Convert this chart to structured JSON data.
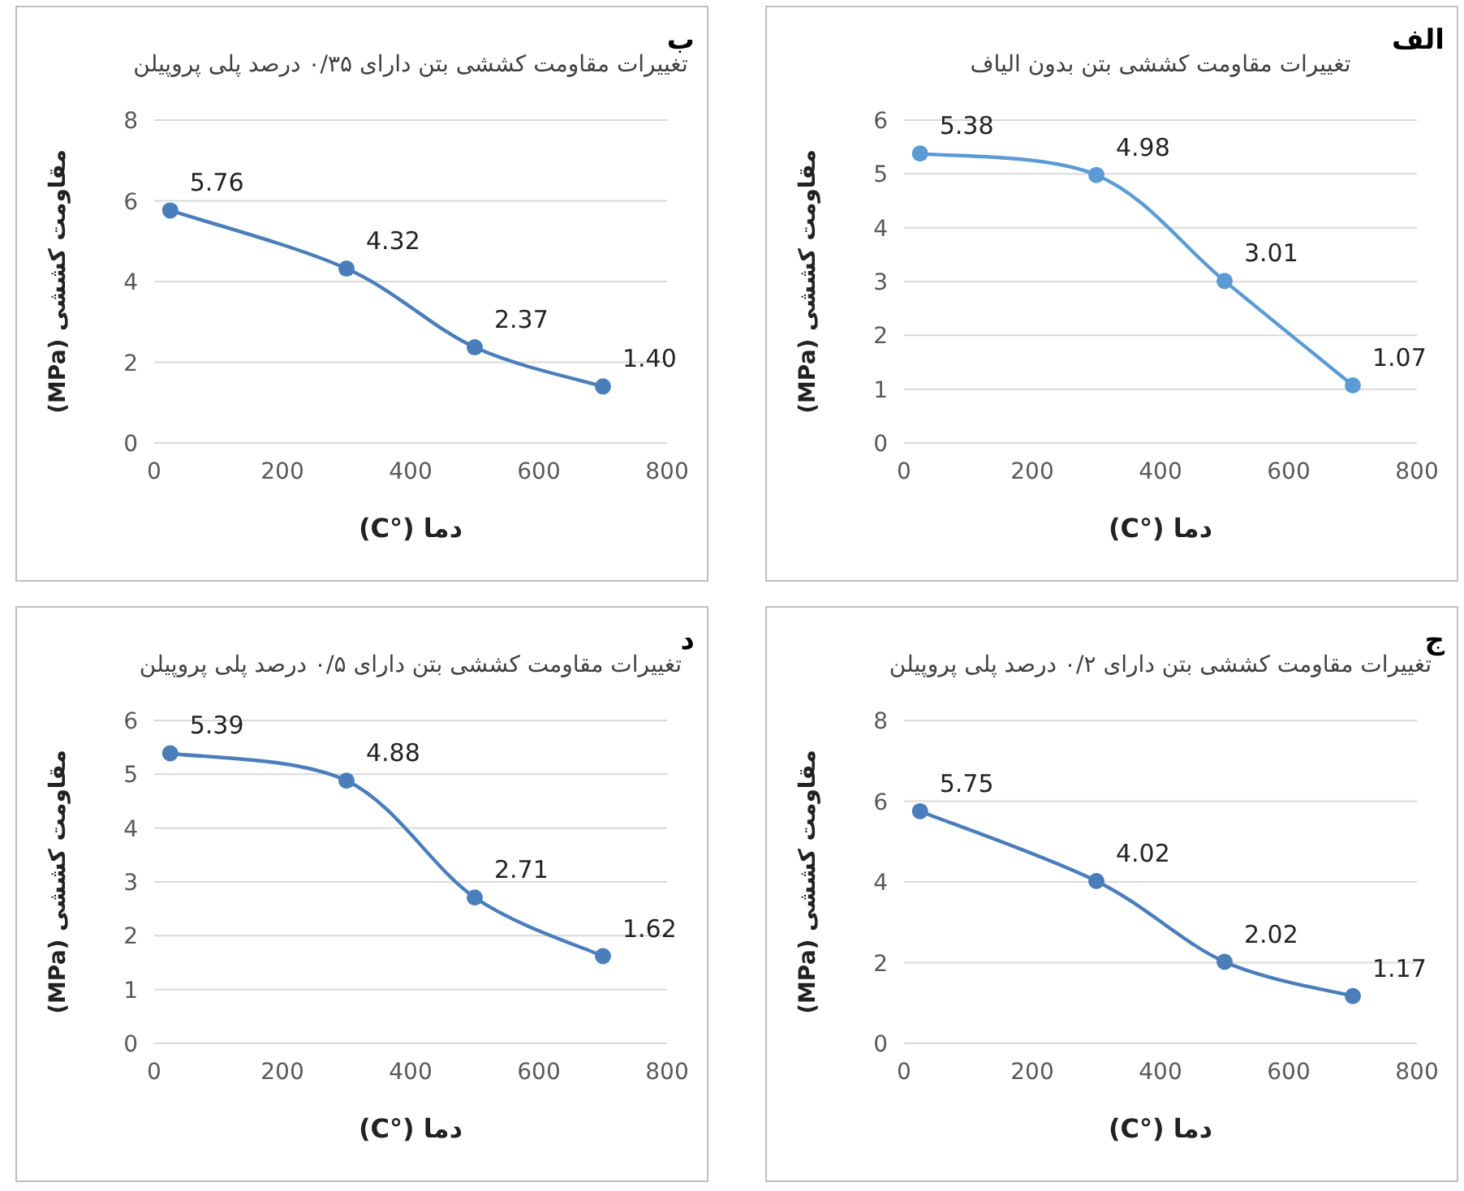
{
  "chart_data": [
    {
      "type": "line",
      "title": "تغییرات مقاومت کششی بتن بدون الیاف",
      "xlabel": "دما (°C)",
      "ylabel": "مقاومت کششی (MPa)",
      "annotations": [
        "الف"
      ],
      "x": [
        25,
        300,
        500,
        700
      ],
      "values": [
        5.38,
        4.98,
        3.01,
        1.07
      ],
      "value_labels": [
        "5.38",
        "4.98",
        "3.01",
        "1.07"
      ],
      "color": "#5b9bd5",
      "xlim": [
        0,
        800
      ],
      "xticks": [
        0,
        200,
        400,
        600,
        800
      ],
      "ylim": [
        0,
        6
      ],
      "yticks": [
        0,
        1,
        2,
        3,
        4,
        5,
        6
      ],
      "grid": "y",
      "marker": "circle"
    },
    {
      "type": "line",
      "title": "تغییرات مقاومت کششی بتن دارای ۰/۳۵ درصد پلی پروپیلن",
      "xlabel": "دما (°C)",
      "ylabel": "مقاومت کششی (MPa)",
      "annotations": [
        "ب"
      ],
      "x": [
        25,
        300,
        500,
        700
      ],
      "values": [
        5.76,
        4.32,
        2.37,
        1.4
      ],
      "value_labels": [
        "5.76",
        "4.32",
        "2.37",
        "1.40"
      ],
      "color": "#4a7ebb",
      "xlim": [
        0,
        800
      ],
      "xticks": [
        0,
        200,
        400,
        600,
        800
      ],
      "ylim": [
        0,
        8
      ],
      "yticks": [
        0,
        2,
        4,
        6,
        8
      ],
      "grid": "y",
      "marker": "circle"
    },
    {
      "type": "line",
      "title": "تغییرات مقاومت کششی بتن دارای ۰/۲ درصد پلی پروپیلن",
      "xlabel": "دما (°C)",
      "ylabel": "مقاومت کششی (MPa)",
      "annotations": [
        "ج"
      ],
      "x": [
        25,
        300,
        500,
        700
      ],
      "values": [
        5.75,
        4.02,
        2.02,
        1.17
      ],
      "value_labels": [
        "5.75",
        "4.02",
        "2.02",
        "1.17"
      ],
      "color": "#4a7ebb",
      "xlim": [
        0,
        800
      ],
      "xticks": [
        0,
        200,
        400,
        600,
        800
      ],
      "ylim": [
        0,
        8
      ],
      "yticks": [
        0,
        2,
        4,
        6,
        8
      ],
      "grid": "y",
      "marker": "circle"
    },
    {
      "type": "line",
      "title": "تغییرات مقاومت کششی بتن دارای ۰/۵ درصد پلی پروپیلن",
      "xlabel": "دما (°C)",
      "ylabel": "مقاومت کششی (MPa)",
      "annotations": [
        "د"
      ],
      "x": [
        25,
        300,
        500,
        700
      ],
      "values": [
        5.39,
        4.88,
        2.71,
        1.62
      ],
      "value_labels": [
        "5.39",
        "4.88",
        "2.71",
        "1.62"
      ],
      "color": "#4a7ebb",
      "xlim": [
        0,
        800
      ],
      "xticks": [
        0,
        200,
        400,
        600,
        800
      ],
      "ylim": [
        0,
        6
      ],
      "yticks": [
        0,
        1,
        2,
        3,
        4,
        5,
        6
      ],
      "grid": "y",
      "marker": "circle"
    }
  ]
}
